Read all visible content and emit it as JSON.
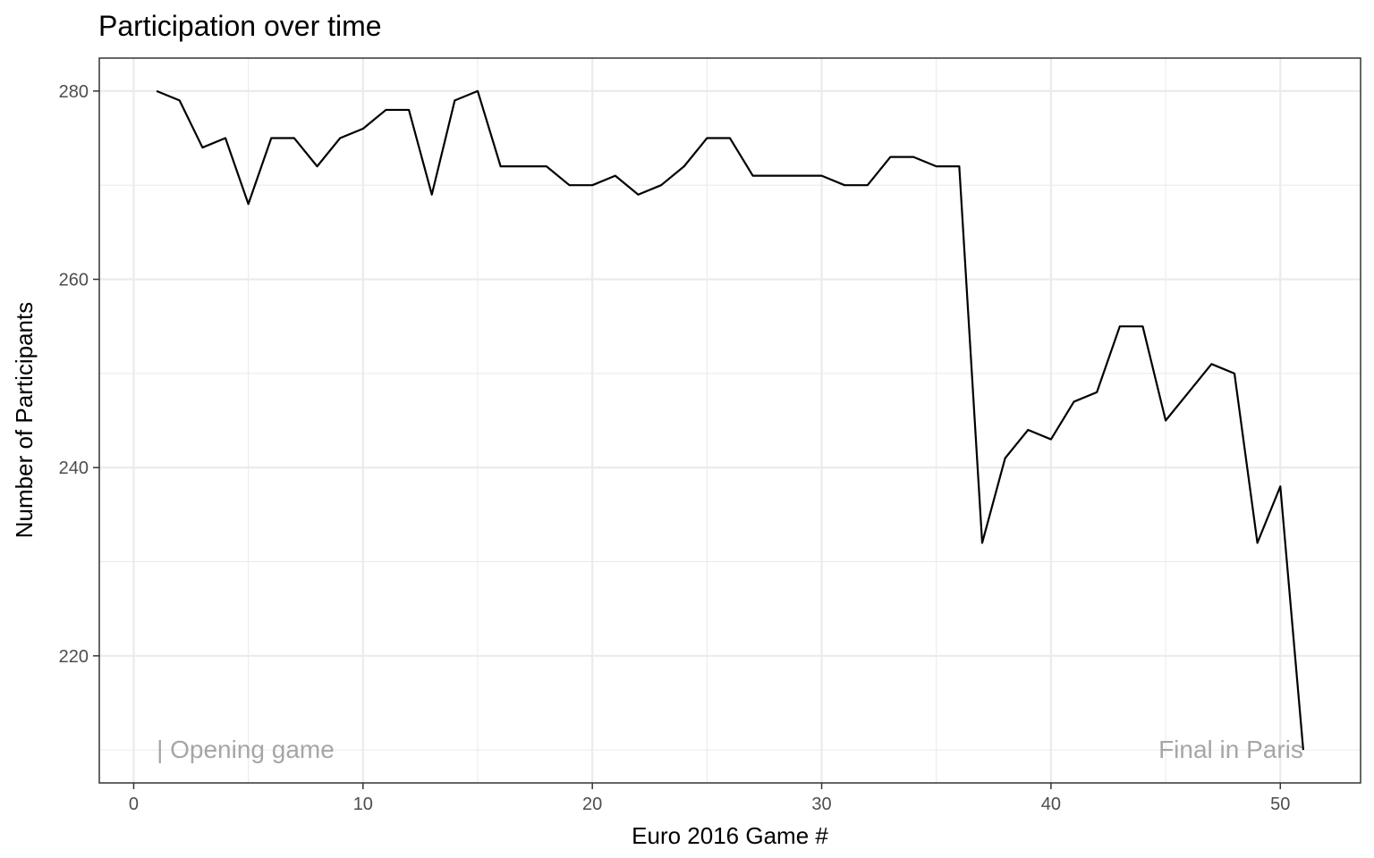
{
  "chart_data": {
    "type": "line",
    "title": "Participation over time",
    "xlabel": "Euro 2016 Game #",
    "ylabel": "Number of Participants",
    "xlim": [
      -1.5,
      53.5
    ],
    "ylim": [
      206.5,
      283.5
    ],
    "x_ticks": [
      0,
      10,
      20,
      30,
      40,
      50
    ],
    "y_ticks": [
      220,
      240,
      260,
      280
    ],
    "grid": true,
    "legend": "none",
    "line_color": "#000000",
    "x": [
      1,
      2,
      3,
      4,
      5,
      6,
      7,
      8,
      9,
      10,
      11,
      12,
      13,
      14,
      15,
      16,
      17,
      18,
      19,
      20,
      21,
      22,
      23,
      24,
      25,
      26,
      27,
      28,
      29,
      30,
      31,
      32,
      33,
      34,
      35,
      36,
      37,
      38,
      39,
      40,
      41,
      42,
      43,
      44,
      45,
      46,
      47,
      48,
      49,
      50,
      51
    ],
    "y": [
      280,
      279,
      274,
      275,
      268,
      275,
      275,
      272,
      275,
      276,
      278,
      278,
      269,
      279,
      280,
      272,
      272,
      272,
      270,
      270,
      271,
      269,
      270,
      272,
      275,
      275,
      271,
      271,
      271,
      271,
      270,
      270,
      273,
      273,
      272,
      272,
      232,
      241,
      244,
      243,
      247,
      248,
      255,
      255,
      245,
      248,
      251,
      250,
      232,
      238,
      210
    ],
    "annotations": [
      {
        "text": "| Opening game",
        "x": 1,
        "y": 210,
        "anchor": "start",
        "color": "#a6a6a6"
      },
      {
        "text": "Final in Paris",
        "x": 51,
        "y": 210,
        "anchor": "end",
        "color": "#a6a6a6"
      }
    ]
  }
}
